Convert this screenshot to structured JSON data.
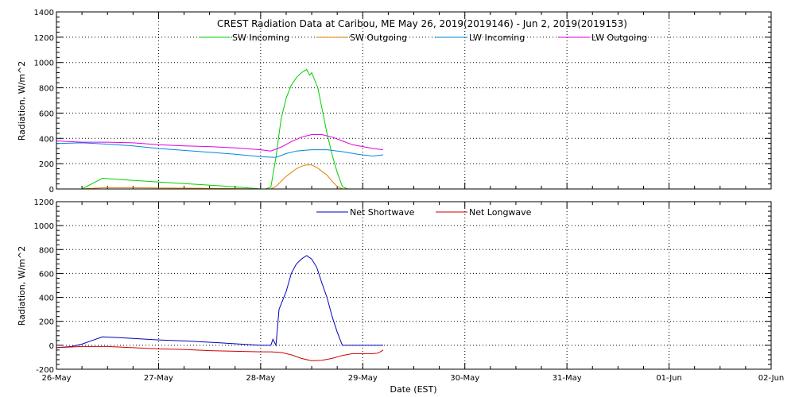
{
  "chart_data": [
    {
      "type": "line",
      "title": "CREST Radiation Data at Caribou, ME   May 26, 2019(2019146) - Jun  2, 2019(2019153)",
      "ylabel": "Radiation, W/m^2",
      "xlabel": "",
      "ylim": [
        0,
        1400
      ],
      "yticks": [
        "0",
        "200",
        "400",
        "600",
        "800",
        "1000",
        "1200",
        "1400"
      ],
      "xlim_days": [
        0,
        7
      ],
      "xticks": [
        "26-May",
        "27-May",
        "28-May",
        "29-May",
        "30-May",
        "31-May",
        "01-Jun",
        "02-Jun"
      ],
      "grid": true,
      "legend_placement": "top",
      "series": [
        {
          "name": "SW Incoming",
          "color": "#00d000",
          "x": [
            0.12,
            0.25,
            0.45,
            0.7,
            1.0,
            1.3,
            1.6,
            1.85,
            2.0,
            2.05,
            2.1,
            2.15,
            2.2,
            2.25,
            2.3,
            2.35,
            2.4,
            2.45,
            2.48,
            2.5,
            2.53,
            2.56,
            2.6,
            2.65,
            2.7,
            2.75,
            2.8,
            2.85,
            2.9,
            3.0,
            3.1
          ],
          "y": [
            0,
            0,
            85,
            70,
            55,
            40,
            25,
            10,
            0,
            0,
            15,
            250,
            550,
            720,
            820,
            880,
            920,
            945,
            900,
            920,
            860,
            800,
            640,
            440,
            270,
            130,
            20,
            0,
            0,
            0,
            0
          ]
        },
        {
          "name": "SW Outgoing",
          "color": "#e08000",
          "x": [
            0.12,
            0.25,
            0.45,
            0.7,
            1.0,
            1.3,
            1.6,
            1.85,
            2.0,
            2.1,
            2.15,
            2.2,
            2.25,
            2.3,
            2.35,
            2.4,
            2.45,
            2.5,
            2.55,
            2.6,
            2.65,
            2.7,
            2.75,
            2.8,
            2.85
          ],
          "y": [
            0,
            0,
            10,
            10,
            8,
            6,
            4,
            2,
            0,
            0,
            20,
            60,
            100,
            130,
            160,
            180,
            190,
            190,
            170,
            140,
            110,
            60,
            20,
            0,
            0
          ]
        },
        {
          "name": "LW Incoming",
          "color": "#0088dd",
          "x": [
            0,
            0.25,
            0.5,
            0.75,
            1.0,
            1.25,
            1.5,
            1.75,
            2.0,
            2.15,
            2.25,
            2.35,
            2.5,
            2.65,
            2.8,
            2.95,
            3.1,
            3.2
          ],
          "y": [
            360,
            365,
            355,
            340,
            320,
            305,
            290,
            275,
            255,
            250,
            280,
            300,
            310,
            310,
            295,
            275,
            260,
            270
          ]
        },
        {
          "name": "LW Outgoing",
          "color": "#e000e0",
          "x": [
            0,
            0.25,
            0.5,
            0.75,
            1.0,
            1.25,
            1.5,
            1.75,
            2.0,
            2.1,
            2.2,
            2.3,
            2.4,
            2.5,
            2.6,
            2.7,
            2.8,
            2.9,
            3.0,
            3.1,
            3.2
          ],
          "y": [
            380,
            370,
            370,
            365,
            350,
            340,
            335,
            325,
            310,
            300,
            330,
            375,
            410,
            430,
            430,
            410,
            380,
            350,
            335,
            320,
            310
          ]
        }
      ]
    },
    {
      "type": "line",
      "title": "",
      "ylabel": "Radiation, W/m^2",
      "xlabel": "Date (EST)",
      "ylim": [
        -200,
        1200
      ],
      "yticks": [
        "-200",
        "0",
        "200",
        "400",
        "600",
        "800",
        "1000",
        "1200"
      ],
      "xlim_days": [
        0,
        7
      ],
      "xticks": [
        "26-May",
        "27-May",
        "28-May",
        "29-May",
        "30-May",
        "31-May",
        "01-Jun",
        "02-Jun"
      ],
      "grid": true,
      "legend_placement": "top",
      "series": [
        {
          "name": "Net Shortwave",
          "color": "#0000c0",
          "x": [
            0,
            0.15,
            0.25,
            0.35,
            0.45,
            0.6,
            0.8,
            1.0,
            1.3,
            1.6,
            1.85,
            2.0,
            2.1,
            2.12,
            2.15,
            2.18,
            2.25,
            2.3,
            2.35,
            2.4,
            2.45,
            2.5,
            2.55,
            2.6,
            2.65,
            2.7,
            2.75,
            2.8,
            2.85,
            3.0,
            3.2
          ],
          "y": [
            -20,
            -10,
            10,
            40,
            70,
            65,
            55,
            45,
            35,
            20,
            8,
            0,
            0,
            50,
            0,
            300,
            450,
            600,
            680,
            720,
            750,
            720,
            650,
            520,
            400,
            240,
            110,
            0,
            0,
            0,
            0
          ]
        },
        {
          "name": "Net Longwave",
          "color": "#d00000",
          "x": [
            0,
            0.25,
            0.5,
            0.75,
            1.0,
            1.25,
            1.5,
            1.75,
            2.0,
            2.1,
            2.2,
            2.3,
            2.4,
            2.5,
            2.6,
            2.7,
            2.8,
            2.9,
            3.0,
            3.1,
            3.15,
            3.2
          ],
          "y": [
            -20,
            -10,
            -10,
            -20,
            -30,
            -35,
            -45,
            -50,
            -55,
            -55,
            -60,
            -80,
            -110,
            -130,
            -125,
            -110,
            -85,
            -70,
            -70,
            -70,
            -65,
            -40
          ]
        }
      ]
    }
  ]
}
